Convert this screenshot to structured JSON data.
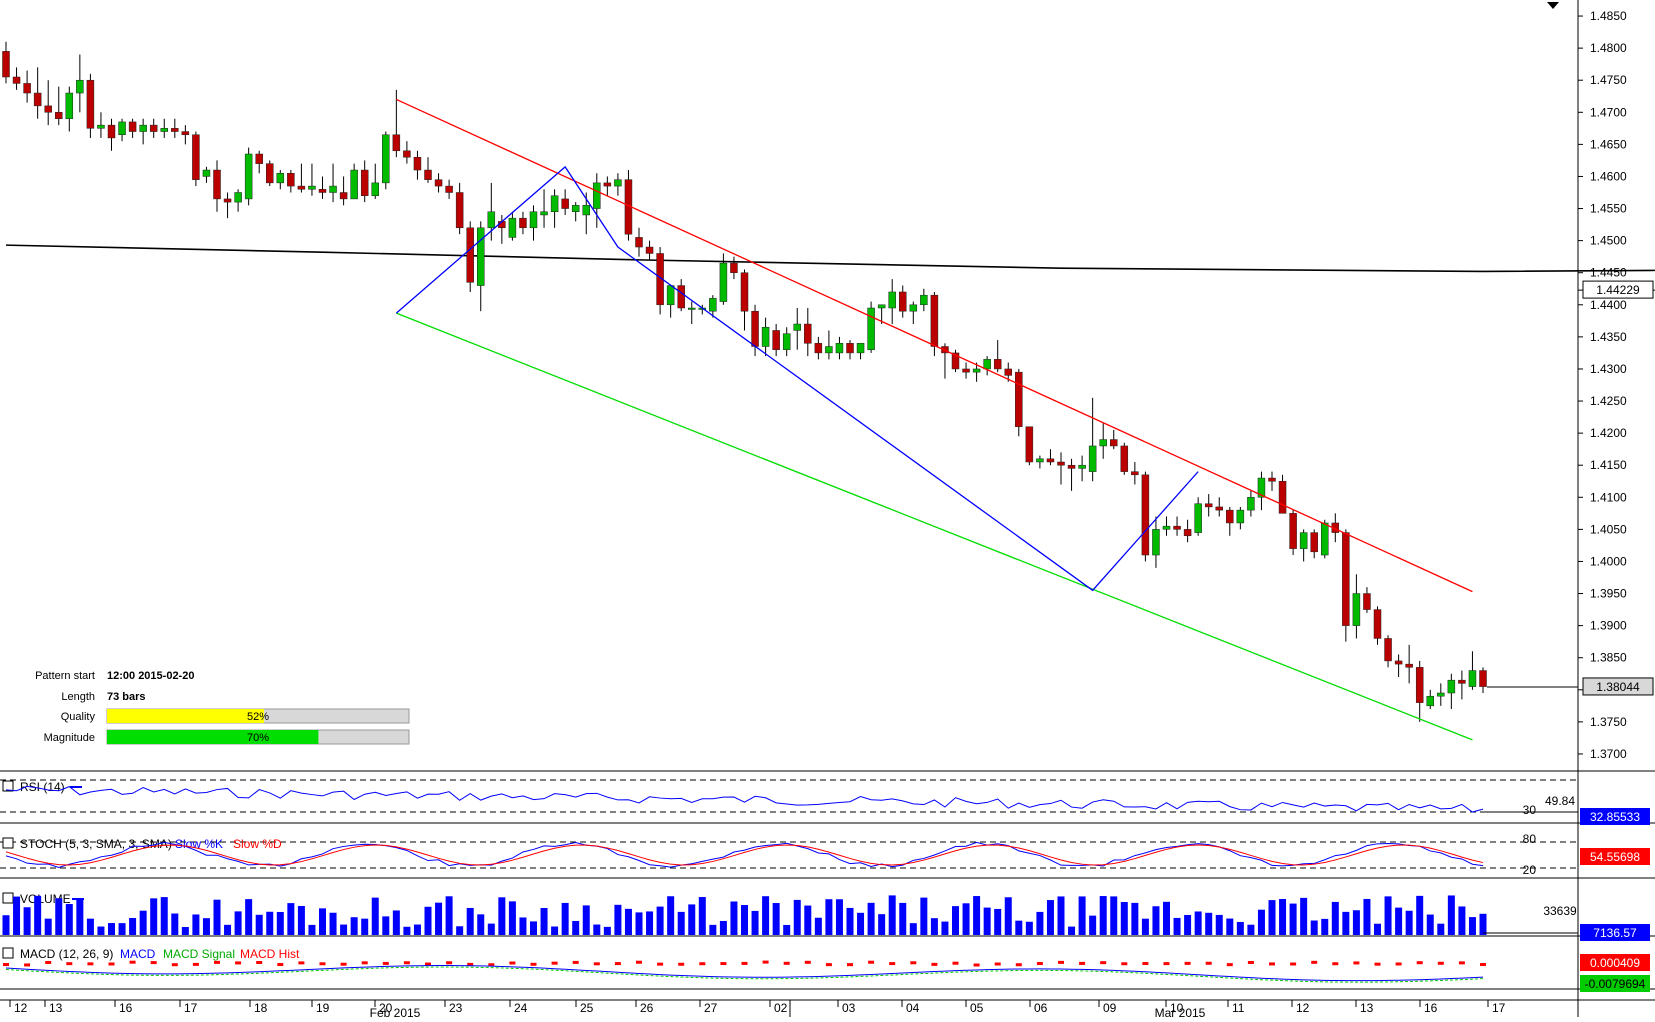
{
  "chart_data": {
    "type": "candlestick",
    "y_axis": {
      "range": [
        1.3675,
        1.4875
      ],
      "ticks": [
        "1.4850",
        "1.4800",
        "1.4750",
        "1.4700",
        "1.4650",
        "1.4600",
        "1.4550",
        "1.4500",
        "1.4450",
        "1.4400",
        "1.4350",
        "1.4300",
        "1.4250",
        "1.4200",
        "1.4150",
        "1.4100",
        "1.4050",
        "1.4000",
        "1.3950",
        "1.3900",
        "1.3850",
        "1.3800",
        "1.3750",
        "1.3700"
      ],
      "current_price_label": "1.38044",
      "ma_label": "1.44229"
    },
    "x_axis": {
      "day_ticks": [
        "12",
        "13",
        "16",
        "17",
        "18",
        "19",
        "20",
        "23",
        "24",
        "25",
        "26",
        "27",
        "02",
        "03",
        "04",
        "05",
        "06",
        "09",
        "10",
        "11",
        "12",
        "13",
        "16",
        "17"
      ],
      "month_labels": [
        "Feb 2015",
        "Mar 2015"
      ]
    },
    "moving_average": [
      [
        0,
        1.4493
      ],
      [
        30,
        1.4482
      ],
      [
        60,
        1.447
      ],
      [
        100,
        1.4457
      ],
      [
        140,
        1.4452
      ],
      [
        170,
        1.4455
      ],
      [
        190,
        1.4463
      ],
      [
        215,
        1.4462
      ],
      [
        232,
        1.4448
      ],
      [
        244,
        1.4428
      ],
      [
        252,
        1.4423
      ]
    ],
    "ohlc": [
      [
        1.4795,
        1.481,
        1.4745,
        1.4755
      ],
      [
        1.4755,
        1.477,
        1.4735,
        1.4745
      ],
      [
        1.4745,
        1.4765,
        1.4715,
        1.473
      ],
      [
        1.473,
        1.477,
        1.469,
        1.471
      ],
      [
        1.471,
        1.475,
        1.468,
        1.47
      ],
      [
        1.47,
        1.474,
        1.468,
        1.469
      ],
      [
        1.469,
        1.474,
        1.467,
        1.473
      ],
      [
        1.473,
        1.479,
        1.47,
        1.475
      ],
      [
        1.475,
        1.476,
        1.466,
        1.4675
      ],
      [
        1.4675,
        1.47,
        1.466,
        1.468
      ],
      [
        1.468,
        1.469,
        1.464,
        1.466
      ],
      [
        1.4665,
        1.469,
        1.4655,
        1.4685
      ],
      [
        1.4685,
        1.469,
        1.466,
        1.467
      ],
      [
        1.467,
        1.469,
        1.465,
        1.468
      ],
      [
        1.468,
        1.469,
        1.466,
        1.467
      ],
      [
        1.467,
        1.469,
        1.466,
        1.4675
      ],
      [
        1.4675,
        1.469,
        1.466,
        1.467
      ],
      [
        1.467,
        1.468,
        1.465,
        1.4665
      ],
      [
        1.4665,
        1.467,
        1.4585,
        1.4595
      ],
      [
        1.46,
        1.4615,
        1.459,
        1.461
      ],
      [
        1.461,
        1.4625,
        1.4545,
        1.4565
      ],
      [
        1.4565,
        1.4575,
        1.4535,
        1.456
      ],
      [
        1.456,
        1.458,
        1.4545,
        1.4575
      ],
      [
        1.4565,
        1.4645,
        1.4555,
        1.4635
      ],
      [
        1.4635,
        1.464,
        1.4605,
        1.462
      ],
      [
        1.462,
        1.4625,
        1.4585,
        1.459
      ],
      [
        1.459,
        1.461,
        1.458,
        1.4605
      ],
      [
        1.4605,
        1.461,
        1.4575,
        1.4585
      ],
      [
        1.4585,
        1.462,
        1.4575,
        1.458
      ],
      [
        1.458,
        1.462,
        1.457,
        1.4585
      ],
      [
        1.458,
        1.46,
        1.4565,
        1.4575
      ],
      [
        1.4575,
        1.462,
        1.456,
        1.4585
      ],
      [
        1.4575,
        1.46,
        1.4555,
        1.4565
      ],
      [
        1.4565,
        1.462,
        1.4565,
        1.461
      ],
      [
        1.461,
        1.4625,
        1.456,
        1.457
      ],
      [
        1.457,
        1.462,
        1.4565,
        1.459
      ],
      [
        1.459,
        1.467,
        1.458,
        1.4665
      ],
      [
        1.4665,
        1.4735,
        1.463,
        1.464
      ],
      [
        1.464,
        1.4655,
        1.462,
        1.463
      ],
      [
        1.463,
        1.464,
        1.4595,
        1.461
      ],
      [
        1.461,
        1.463,
        1.459,
        1.4595
      ],
      [
        1.4595,
        1.4605,
        1.4575,
        1.4585
      ],
      [
        1.4585,
        1.4595,
        1.4565,
        1.4575
      ],
      [
        1.4575,
        1.459,
        1.451,
        1.452
      ],
      [
        1.452,
        1.453,
        1.442,
        1.4435
      ],
      [
        1.443,
        1.453,
        1.439,
        1.452
      ],
      [
        1.452,
        1.459,
        1.45,
        1.4545
      ],
      [
        1.453,
        1.454,
        1.4495,
        1.452
      ],
      [
        1.4505,
        1.4545,
        1.45,
        1.4535
      ],
      [
        1.4535,
        1.4545,
        1.451,
        1.452
      ],
      [
        1.452,
        1.4555,
        1.45,
        1.4545
      ],
      [
        1.454,
        1.458,
        1.452,
        1.4545
      ],
      [
        1.4545,
        1.458,
        1.452,
        1.457
      ],
      [
        1.4565,
        1.458,
        1.454,
        1.455
      ],
      [
        1.4545,
        1.456,
        1.453,
        1.4555
      ],
      [
        1.454,
        1.4575,
        1.451,
        1.4555
      ],
      [
        1.455,
        1.4605,
        1.452,
        1.459
      ],
      [
        1.459,
        1.46,
        1.457,
        1.4585
      ],
      [
        1.4585,
        1.4605,
        1.457,
        1.4595
      ],
      [
        1.4595,
        1.461,
        1.45,
        1.451
      ],
      [
        1.4505,
        1.452,
        1.4475,
        1.449
      ],
      [
        1.449,
        1.45,
        1.447,
        1.448
      ],
      [
        1.448,
        1.449,
        1.4385,
        1.44
      ],
      [
        1.44,
        1.443,
        1.438,
        1.443
      ],
      [
        1.443,
        1.444,
        1.439,
        1.4395
      ],
      [
        1.4395,
        1.4405,
        1.437,
        1.4395
      ],
      [
        1.4395,
        1.44,
        1.4385,
        1.4395
      ],
      [
        1.439,
        1.4415,
        1.438,
        1.441
      ],
      [
        1.4405,
        1.448,
        1.44,
        1.4465
      ],
      [
        1.4465,
        1.4475,
        1.444,
        1.445
      ],
      [
        1.445,
        1.4455,
        1.436,
        1.439
      ],
      [
        1.439,
        1.44,
        1.432,
        1.4335
      ],
      [
        1.4335,
        1.438,
        1.432,
        1.4365
      ],
      [
        1.436,
        1.437,
        1.432,
        1.433
      ],
      [
        1.433,
        1.4365,
        1.432,
        1.4355
      ],
      [
        1.436,
        1.4395,
        1.433,
        1.437
      ],
      [
        1.437,
        1.4395,
        1.432,
        1.434
      ],
      [
        1.434,
        1.435,
        1.4315,
        1.4325
      ],
      [
        1.4325,
        1.436,
        1.4315,
        1.4335
      ],
      [
        1.4325,
        1.435,
        1.4315,
        1.434
      ],
      [
        1.434,
        1.4345,
        1.4315,
        1.4325
      ],
      [
        1.4325,
        1.434,
        1.4315,
        1.434
      ],
      [
        1.433,
        1.4405,
        1.4325,
        1.4395
      ],
      [
        1.4395,
        1.44,
        1.437,
        1.44
      ],
      [
        1.4395,
        1.444,
        1.437,
        1.442
      ],
      [
        1.442,
        1.443,
        1.438,
        1.439
      ],
      [
        1.439,
        1.4405,
        1.437,
        1.44
      ],
      [
        1.44,
        1.4425,
        1.439,
        1.4415
      ],
      [
        1.4415,
        1.442,
        1.432,
        1.4335
      ],
      [
        1.4335,
        1.434,
        1.4285,
        1.4325
      ],
      [
        1.4325,
        1.433,
        1.4295,
        1.43
      ],
      [
        1.43,
        1.431,
        1.4285,
        1.4295
      ],
      [
        1.4295,
        1.431,
        1.428,
        1.43
      ],
      [
        1.43,
        1.432,
        1.429,
        1.4315
      ],
      [
        1.4315,
        1.4345,
        1.4295,
        1.43
      ],
      [
        1.43,
        1.431,
        1.428,
        1.429
      ],
      [
        1.4295,
        1.43,
        1.4195,
        1.421
      ],
      [
        1.421,
        1.421,
        1.415,
        1.4155
      ],
      [
        1.4155,
        1.4165,
        1.4145,
        1.416
      ],
      [
        1.416,
        1.4175,
        1.415,
        1.4155
      ],
      [
        1.4155,
        1.417,
        1.412,
        1.415
      ],
      [
        1.415,
        1.416,
        1.411,
        1.4145
      ],
      [
        1.4145,
        1.4165,
        1.4125,
        1.415
      ],
      [
        1.414,
        1.4255,
        1.4125,
        1.418
      ],
      [
        1.418,
        1.4215,
        1.416,
        1.419
      ],
      [
        1.419,
        1.4205,
        1.4175,
        1.418
      ],
      [
        1.418,
        1.4185,
        1.4135,
        1.414
      ],
      [
        1.414,
        1.4155,
        1.412,
        1.4135
      ],
      [
        1.4135,
        1.414,
        1.4,
        1.401
      ],
      [
        1.401,
        1.407,
        1.399,
        1.405
      ],
      [
        1.405,
        1.407,
        1.404,
        1.4055
      ],
      [
        1.4055,
        1.407,
        1.404,
        1.405
      ],
      [
        1.405,
        1.4065,
        1.403,
        1.404
      ],
      [
        1.4045,
        1.41,
        1.404,
        1.409
      ],
      [
        1.409,
        1.4105,
        1.407,
        1.4085
      ],
      [
        1.4085,
        1.41,
        1.407,
        1.408
      ],
      [
        1.408,
        1.4085,
        1.404,
        1.406
      ],
      [
        1.406,
        1.4085,
        1.405,
        1.408
      ],
      [
        1.408,
        1.411,
        1.407,
        1.41
      ],
      [
        1.41,
        1.414,
        1.408,
        1.413
      ],
      [
        1.413,
        1.414,
        1.411,
        1.4125
      ],
      [
        1.4125,
        1.4135,
        1.408,
        1.4075
      ],
      [
        1.4075,
        1.408,
        1.401,
        1.402
      ],
      [
        1.402,
        1.405,
        1.4,
        1.4045
      ],
      [
        1.4045,
        1.405,
        1.4005,
        1.4015
      ],
      [
        1.401,
        1.4065,
        1.4005,
        1.406
      ],
      [
        1.406,
        1.4075,
        1.403,
        1.4045
      ],
      [
        1.4045,
        1.405,
        1.3875,
        1.39
      ],
      [
        1.39,
        1.398,
        1.388,
        1.395
      ],
      [
        1.395,
        1.396,
        1.392,
        1.3925
      ],
      [
        1.3925,
        1.393,
        1.387,
        1.388
      ],
      [
        1.388,
        1.3885,
        1.3835,
        1.3845
      ],
      [
        1.3845,
        1.3855,
        1.382,
        1.384
      ],
      [
        1.384,
        1.387,
        1.381,
        1.3835
      ],
      [
        1.3835,
        1.3845,
        1.375,
        1.378
      ],
      [
        1.3775,
        1.38,
        1.377,
        1.379
      ],
      [
        1.379,
        1.381,
        1.3775,
        1.3795
      ],
      [
        1.3795,
        1.3825,
        1.377,
        1.3815
      ],
      [
        1.3815,
        1.383,
        1.3785,
        1.381
      ],
      [
        1.3805,
        1.386,
        1.38,
        1.383
      ],
      [
        1.383,
        1.3835,
        1.3795,
        1.3805
      ]
    ],
    "pattern_lines": {
      "resistance": [
        [
          1.472,
          1.3953
        ]
      ],
      "support": [
        [
          1.4387,
          1.3722
        ]
      ],
      "zigzag": [
        1.4387,
        1.4615,
        1.449,
        1.3955,
        1.414
      ]
    }
  },
  "indicators": {
    "rsi": {
      "title": "RSI (14)",
      "level_label": "30",
      "top_value": "49.84",
      "current": "32.85533",
      "current_color": "#0000ff"
    },
    "stoch": {
      "title": "STOCH (5, 3, SMA, 3, SMA)",
      "legend_k": "Slow %K",
      "legend_d": "Slow %D",
      "level_high": "80",
      "level_low": "20",
      "current": "54.55698",
      "current_color": "#ff0000"
    },
    "volume": {
      "title": "VOLUME",
      "top_value": "33639",
      "current": "7136.57",
      "current_color": "#0000ff"
    },
    "macd": {
      "title": "MACD (12, 26, 9)",
      "legend_macd": "MACD",
      "legend_signal": "MACD Signal",
      "legend_hist": "MACD Hist",
      "current_hist": "0.000409",
      "current_macd": "-0.0079694",
      "hist_color": "#ff0000",
      "macd_color": "#00cc00"
    }
  },
  "pattern_info": {
    "rows": [
      {
        "label": "Pattern start",
        "value": "12:00 2015-02-20"
      },
      {
        "label": "Length",
        "value": "73 bars"
      },
      {
        "label": "Quality",
        "bar_text": "52%",
        "fill": 0.52,
        "color": "#ffff00"
      },
      {
        "label": "Magnitude",
        "bar_text": "70%",
        "fill": 0.7,
        "color": "#00dd00"
      }
    ]
  },
  "colors": {
    "up": "#00bb00",
    "down": "#bb0000",
    "ma": "#000000",
    "resistance": "#ff0000",
    "support": "#00dd00",
    "zigzag": "#0000ff"
  }
}
